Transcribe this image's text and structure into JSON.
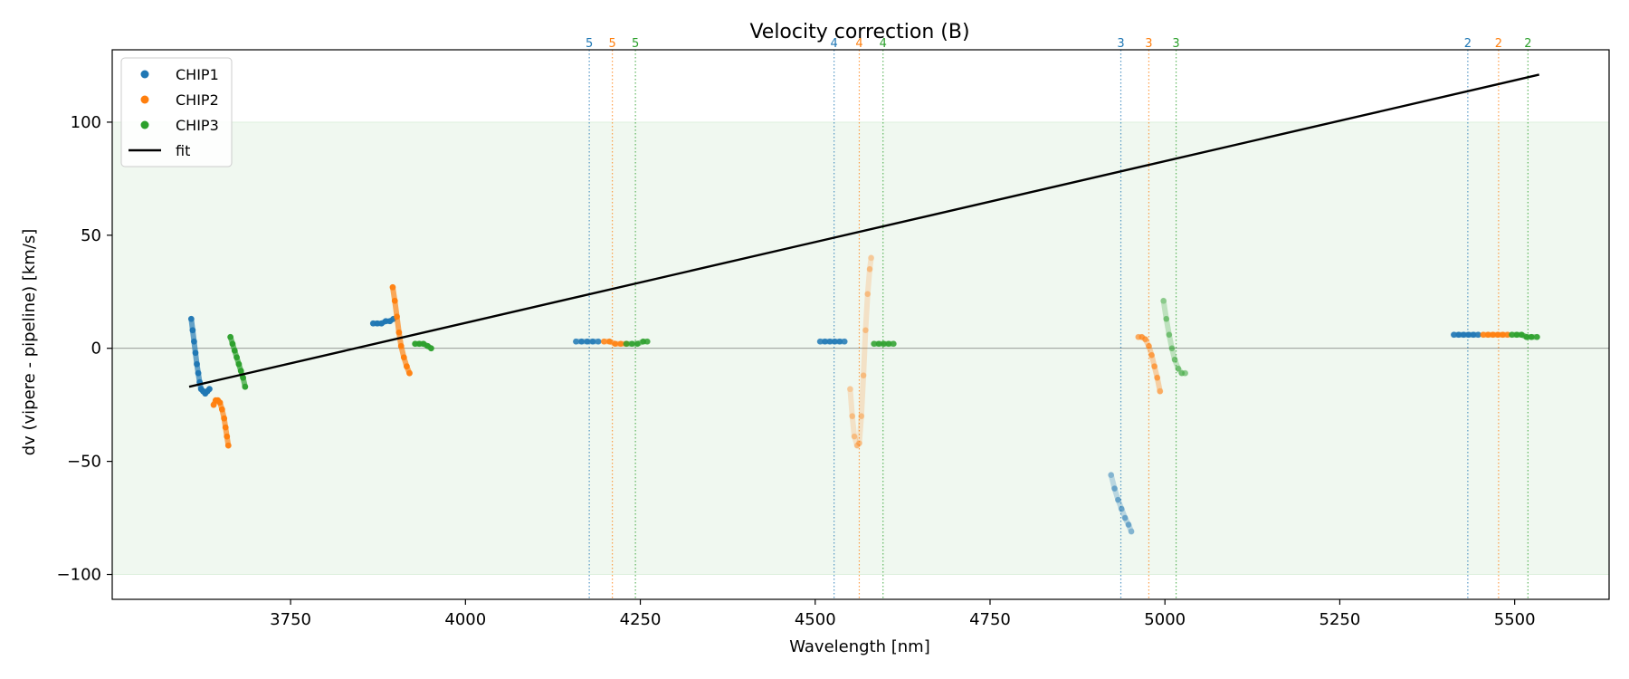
{
  "chart_data": {
    "type": "scatter",
    "title": "Velocity correction (B)",
    "xlabel": "Wavelength [nm]",
    "ylabel": "dv (vipere - pipeline) [km/s]",
    "xlim": [
      3495,
      5635
    ],
    "ylim": [
      -111,
      132
    ],
    "xticks": [
      3750,
      4000,
      4250,
      4500,
      4750,
      5000,
      5250,
      5500
    ],
    "yticks": [
      -100,
      -50,
      0,
      50,
      100
    ],
    "xtick_labels": [
      "3750",
      "4000",
      "4250",
      "4500",
      "4750",
      "5000",
      "5250",
      "5500"
    ],
    "ytick_labels": [
      "−100",
      "−50",
      "0",
      "50",
      "100"
    ],
    "band": {
      "ymin": -100,
      "ymax": 100,
      "color": "#2ca02c"
    },
    "colors": {
      "CHIP1": "#1f77b4",
      "CHIP2": "#ff7f0e",
      "CHIP3": "#2ca02c",
      "fit": "#000000"
    },
    "legend": {
      "position": "top-left",
      "entries": [
        {
          "label": "CHIP1",
          "kind": "marker",
          "color": "#1f77b4"
        },
        {
          "label": "CHIP2",
          "kind": "marker",
          "color": "#ff7f0e"
        },
        {
          "label": "CHIP3",
          "kind": "marker",
          "color": "#2ca02c"
        },
        {
          "label": "fit",
          "kind": "line",
          "color": "#000000"
        }
      ]
    },
    "fit": {
      "x": [
        3605,
        5535
      ],
      "y": [
        -17,
        121
      ]
    },
    "order_markers": [
      {
        "x": 4177,
        "label": "5",
        "color": "#1f77b4"
      },
      {
        "x": 4210,
        "label": "5",
        "color": "#ff7f0e"
      },
      {
        "x": 4243,
        "label": "5",
        "color": "#2ca02c"
      },
      {
        "x": 4527,
        "label": "4",
        "color": "#1f77b4"
      },
      {
        "x": 4563,
        "label": "4",
        "color": "#ff7f0e"
      },
      {
        "x": 4597,
        "label": "4",
        "color": "#2ca02c"
      },
      {
        "x": 4937,
        "label": "3",
        "color": "#1f77b4"
      },
      {
        "x": 4977,
        "label": "3",
        "color": "#ff7f0e"
      },
      {
        "x": 5016,
        "label": "3",
        "color": "#2ca02c"
      },
      {
        "x": 5433,
        "label": "2",
        "color": "#1f77b4"
      },
      {
        "x": 5477,
        "label": "2",
        "color": "#ff7f0e"
      },
      {
        "x": 5519,
        "label": "2",
        "color": "#2ca02c"
      }
    ],
    "series": [
      {
        "name": "CHIP1",
        "opacity": 0.9,
        "points": [
          [
            3608,
            13
          ],
          [
            3610,
            8
          ],
          [
            3612,
            3
          ],
          [
            3614,
            -2
          ],
          [
            3616,
            -7
          ],
          [
            3618,
            -11
          ],
          [
            3620,
            -15
          ],
          [
            3622,
            -18
          ],
          [
            3625,
            -19
          ],
          [
            3628,
            -20
          ],
          [
            3631,
            -19
          ],
          [
            3634,
            -18
          ]
        ]
      },
      {
        "name": "CHIP2",
        "opacity": 0.9,
        "points": [
          [
            3640,
            -25
          ],
          [
            3643,
            -23
          ],
          [
            3646,
            -23
          ],
          [
            3649,
            -24
          ],
          [
            3652,
            -27
          ],
          [
            3655,
            -31
          ],
          [
            3657,
            -35
          ],
          [
            3659,
            -39
          ],
          [
            3661,
            -43
          ]
        ]
      },
      {
        "name": "CHIP3",
        "opacity": 0.9,
        "points": [
          [
            3664,
            5
          ],
          [
            3667,
            2
          ],
          [
            3670,
            -1
          ],
          [
            3673,
            -4
          ],
          [
            3676,
            -7
          ],
          [
            3679,
            -10
          ],
          [
            3682,
            -13
          ],
          [
            3685,
            -17
          ]
        ]
      },
      {
        "name": "CHIP1",
        "opacity": 0.9,
        "points": [
          [
            3868,
            11
          ],
          [
            3874,
            11
          ],
          [
            3880,
            11
          ],
          [
            3886,
            12
          ],
          [
            3892,
            12
          ],
          [
            3897,
            13
          ]
        ]
      },
      {
        "name": "CHIP2",
        "opacity": 0.9,
        "points": [
          [
            3896,
            27
          ],
          [
            3899,
            21
          ],
          [
            3902,
            14
          ],
          [
            3905,
            7
          ],
          [
            3908,
            1
          ],
          [
            3912,
            -4
          ],
          [
            3916,
            -8
          ],
          [
            3920,
            -11
          ]
        ]
      },
      {
        "name": "CHIP3",
        "opacity": 0.9,
        "points": [
          [
            3928,
            2
          ],
          [
            3934,
            2
          ],
          [
            3940,
            2
          ],
          [
            3946,
            1
          ],
          [
            3951,
            0
          ]
        ]
      },
      {
        "name": "CHIP1",
        "opacity": 0.7,
        "points": [
          [
            4158,
            3
          ],
          [
            4166,
            3
          ],
          [
            4174,
            3
          ],
          [
            4182,
            3
          ],
          [
            4190,
            3
          ]
        ]
      },
      {
        "name": "CHIP2",
        "opacity": 0.7,
        "points": [
          [
            4198,
            3
          ],
          [
            4206,
            3
          ],
          [
            4214,
            2
          ],
          [
            4222,
            2
          ],
          [
            4230,
            2
          ]
        ]
      },
      {
        "name": "CHIP3",
        "opacity": 0.7,
        "points": [
          [
            4230,
            2
          ],
          [
            4238,
            2
          ],
          [
            4246,
            2
          ],
          [
            4254,
            3
          ],
          [
            4260,
            3
          ]
        ]
      },
      {
        "name": "CHIP1",
        "opacity": 0.7,
        "points": [
          [
            4507,
            3
          ],
          [
            4514,
            3
          ],
          [
            4521,
            3
          ],
          [
            4528,
            3
          ],
          [
            4535,
            3
          ],
          [
            4542,
            3
          ]
        ]
      },
      {
        "name": "CHIP2",
        "opacity": 0.25,
        "points": [
          [
            4550,
            -18
          ],
          [
            4553,
            -30
          ],
          [
            4556,
            -39
          ],
          [
            4560,
            -43
          ],
          [
            4563,
            -42
          ],
          [
            4566,
            -30
          ],
          [
            4569,
            -12
          ],
          [
            4572,
            8
          ],
          [
            4575,
            24
          ],
          [
            4578,
            35
          ],
          [
            4580,
            40
          ]
        ]
      },
      {
        "name": "CHIP3",
        "opacity": 0.7,
        "points": [
          [
            4584,
            2
          ],
          [
            4591,
            2
          ],
          [
            4598,
            2
          ],
          [
            4605,
            2
          ],
          [
            4612,
            2
          ]
        ]
      },
      {
        "name": "CHIP1",
        "opacity": 0.35,
        "points": [
          [
            4923,
            -56
          ],
          [
            4928,
            -62
          ],
          [
            4933,
            -67
          ],
          [
            4938,
            -71
          ],
          [
            4943,
            -75
          ],
          [
            4948,
            -78
          ],
          [
            4952,
            -81
          ]
        ]
      },
      {
        "name": "CHIP2",
        "opacity": 0.45,
        "points": [
          [
            4962,
            5
          ],
          [
            4967,
            5
          ],
          [
            4972,
            4
          ],
          [
            4977,
            1
          ],
          [
            4981,
            -3
          ],
          [
            4985,
            -8
          ],
          [
            4989,
            -13
          ],
          [
            4993,
            -19
          ]
        ]
      },
      {
        "name": "CHIP3",
        "opacity": 0.35,
        "points": [
          [
            4998,
            21
          ],
          [
            5002,
            13
          ],
          [
            5006,
            6
          ],
          [
            5010,
            0
          ],
          [
            5014,
            -5
          ],
          [
            5019,
            -9
          ],
          [
            5024,
            -11
          ],
          [
            5029,
            -11
          ]
        ]
      },
      {
        "name": "CHIP1",
        "opacity": 0.8,
        "points": [
          [
            5413,
            6
          ],
          [
            5420,
            6
          ],
          [
            5427,
            6
          ],
          [
            5434,
            6
          ],
          [
            5441,
            6
          ],
          [
            5448,
            6
          ]
        ]
      },
      {
        "name": "CHIP2",
        "opacity": 0.8,
        "points": [
          [
            5455,
            6
          ],
          [
            5462,
            6
          ],
          [
            5469,
            6
          ],
          [
            5476,
            6
          ],
          [
            5483,
            6
          ],
          [
            5490,
            6
          ]
        ]
      },
      {
        "name": "CHIP3",
        "opacity": 0.8,
        "points": [
          [
            5496,
            6
          ],
          [
            5503,
            6
          ],
          [
            5510,
            6
          ],
          [
            5517,
            5
          ],
          [
            5524,
            5
          ],
          [
            5532,
            5
          ]
        ]
      }
    ]
  }
}
